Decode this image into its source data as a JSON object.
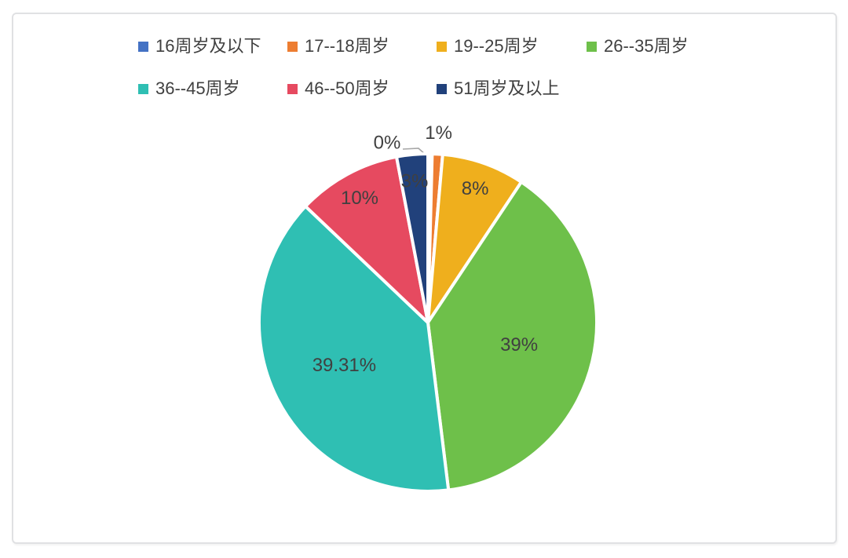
{
  "chart_data": {
    "type": "pie",
    "title": "",
    "legend_position": "top",
    "direction": "clockwise",
    "start_angle_deg": 0,
    "label_color": "#404040",
    "leader_line_color": "#A6A6A6",
    "series": [
      {
        "name": "16周岁及以下",
        "value": 0,
        "label": "0%",
        "color": "#4472C4"
      },
      {
        "name": "17--18周岁",
        "value": 1,
        "label": "1%",
        "color": "#ED7D31"
      },
      {
        "name": "19--25周岁",
        "value": 8,
        "label": "8%",
        "color": "#EFAF1D"
      },
      {
        "name": "26--35周岁",
        "value": 39,
        "label": "39%",
        "color": "#6EC04A"
      },
      {
        "name": "36--45周岁",
        "value": 39.31,
        "label": "39.31%",
        "color": "#2FBFB3"
      },
      {
        "name": "46--50周岁",
        "value": 10,
        "label": "10%",
        "color": "#E64A60"
      },
      {
        "name": "51周岁及以上",
        "value": 3,
        "label": "3%",
        "color": "#21417B"
      }
    ]
  }
}
